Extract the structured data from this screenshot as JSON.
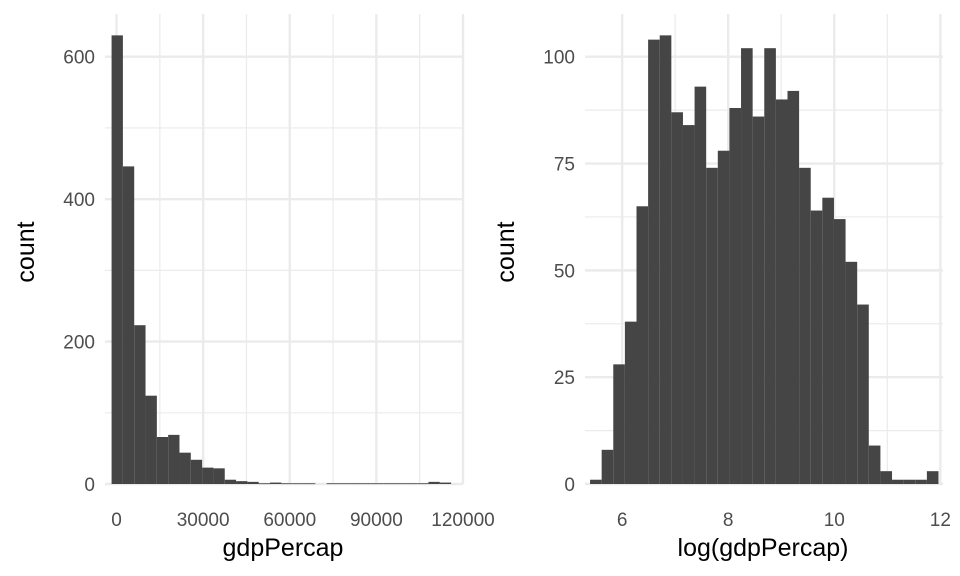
{
  "chart_data": [
    {
      "type": "bar",
      "subtype": "histogram",
      "title": "",
      "xlabel": "gdpPercap",
      "ylabel": "count",
      "bins": 30,
      "xlim": [
        -4000,
        120000
      ],
      "ylim": [
        0,
        660
      ],
      "xticks": [
        0,
        30000,
        60000,
        90000,
        120000
      ],
      "xtick_labels": [
        "0",
        "30000",
        "60000",
        "90000",
        "120000"
      ],
      "yticks": [
        0,
        200,
        400,
        600
      ],
      "ytick_labels": [
        "0",
        "200",
        "400",
        "600"
      ],
      "bin_width": 3920,
      "bin_start": -1722,
      "counts": [
        630,
        446,
        223,
        124,
        66,
        69,
        44,
        34,
        23,
        22,
        6,
        4,
        3,
        1,
        2,
        1,
        1,
        1,
        0,
        1,
        1,
        1,
        1,
        1,
        1,
        1,
        1,
        1,
        3,
        2
      ],
      "bar_color": "#454545",
      "grid": true
    },
    {
      "type": "bar",
      "subtype": "histogram",
      "title": "",
      "xlabel": "log(gdpPercap)",
      "ylabel": "count",
      "bins": 30,
      "xlim": [
        5.3,
        12.05
      ],
      "ylim": [
        0,
        110
      ],
      "xticks": [
        6,
        8,
        10,
        12
      ],
      "xtick_labels": [
        "6",
        "8",
        "10",
        "12"
      ],
      "yticks": [
        0,
        25,
        50,
        75,
        100
      ],
      "ytick_labels": [
        "0",
        "25",
        "50",
        "75",
        "100"
      ],
      "bin_width": 0.219,
      "bin_start": 5.395,
      "counts": [
        1,
        8,
        28,
        38,
        65,
        104,
        105,
        87,
        84,
        93,
        74,
        78,
        88,
        102,
        86,
        102,
        90,
        92,
        74,
        64,
        67,
        62,
        52,
        42,
        9,
        3,
        1,
        1,
        1,
        3
      ],
      "bar_color": "#454545",
      "grid": true
    }
  ]
}
